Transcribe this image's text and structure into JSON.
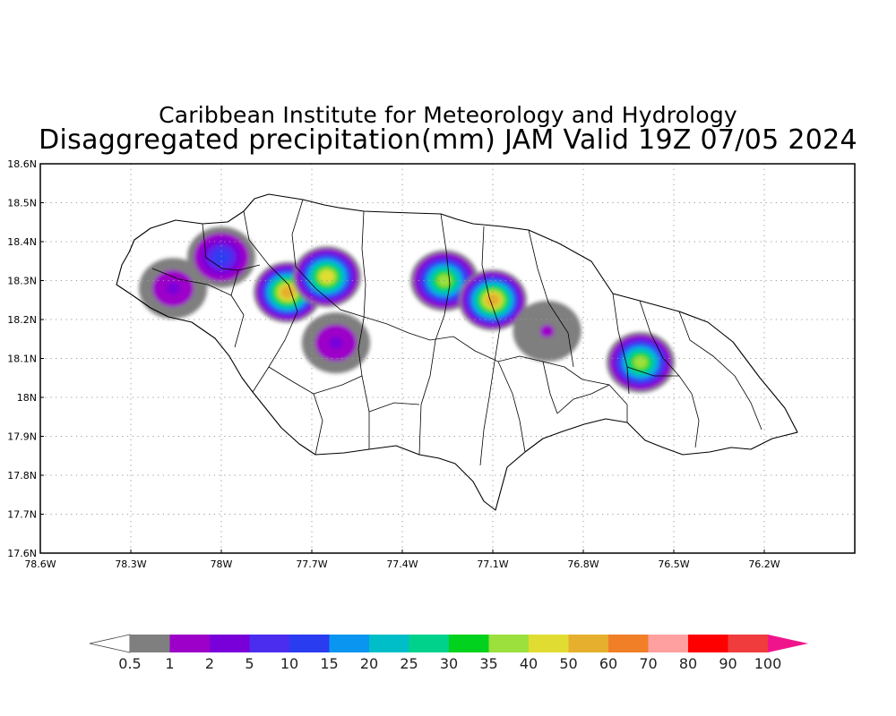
{
  "title": "Caribbean Institute for Meteorology and Hydrology",
  "subtitle": "Disaggregated precipitation(mm) JAM Valid 19Z 07/05 2024",
  "map": {
    "region": "Jamaica",
    "projection": "lat-lon",
    "lon_range": [
      -78.6,
      -75.9
    ],
    "lat_range": [
      17.6,
      18.6
    ],
    "grid": true,
    "lat_ticks": [
      {
        "value": 18.6,
        "label": "18.6N"
      },
      {
        "value": 18.5,
        "label": "18.5N"
      },
      {
        "value": 18.4,
        "label": "18.4N"
      },
      {
        "value": 18.3,
        "label": "18.3N"
      },
      {
        "value": 18.2,
        "label": "18.2N"
      },
      {
        "value": 18.1,
        "label": "18.1N"
      },
      {
        "value": 18.0,
        "label": "18N"
      },
      {
        "value": 17.9,
        "label": "17.9N"
      },
      {
        "value": 17.8,
        "label": "17.8N"
      },
      {
        "value": 17.7,
        "label": "17.7N"
      },
      {
        "value": 17.6,
        "label": "17.6N"
      }
    ],
    "lon_ticks": [
      {
        "value": -78.6,
        "label": "78.6W"
      },
      {
        "value": -78.3,
        "label": "78.3W"
      },
      {
        "value": -78.0,
        "label": "78W"
      },
      {
        "value": -77.7,
        "label": "77.7W"
      },
      {
        "value": -77.4,
        "label": "77.4W"
      },
      {
        "value": -77.1,
        "label": "77.1W"
      },
      {
        "value": -76.8,
        "label": "76.8W"
      },
      {
        "value": -76.5,
        "label": "76.5W"
      },
      {
        "value": -76.2,
        "label": "76.2W"
      }
    ],
    "precip_cells": [
      {
        "lon": -78.16,
        "lat": 18.28,
        "peak_mm": 2
      },
      {
        "lon": -78.0,
        "lat": 18.36,
        "peak_mm": 10
      },
      {
        "lon": -77.78,
        "lat": 18.27,
        "peak_mm": 50
      },
      {
        "lon": -77.65,
        "lat": 18.31,
        "peak_mm": 40
      },
      {
        "lon": -77.62,
        "lat": 18.14,
        "peak_mm": 2
      },
      {
        "lon": -77.26,
        "lat": 18.3,
        "peak_mm": 35
      },
      {
        "lon": -77.1,
        "lat": 18.25,
        "peak_mm": 50
      },
      {
        "lon": -76.92,
        "lat": 18.17,
        "peak_mm": 1
      },
      {
        "lon": -76.61,
        "lat": 18.09,
        "peak_mm": 35
      }
    ]
  },
  "colorbar": {
    "labels": [
      "0.5",
      "1",
      "2",
      "5",
      "10",
      "15",
      "20",
      "25",
      "30",
      "35",
      "40",
      "50",
      "60",
      "70",
      "80",
      "90",
      "100"
    ],
    "colors": [
      "#7f7f7f",
      "#9d00c8",
      "#7a00d9",
      "#4b2df0",
      "#2a3cf0",
      "#0a96f0",
      "#00bec8",
      "#00d28c",
      "#00d21e",
      "#9be03c",
      "#e1dc32",
      "#e6af2d",
      "#f07f28",
      "#ffa0a0",
      "#ff0000",
      "#f03c3c"
    ],
    "low_arrow_color": "#ffffff",
    "high_arrow_color": "#f0148c"
  }
}
